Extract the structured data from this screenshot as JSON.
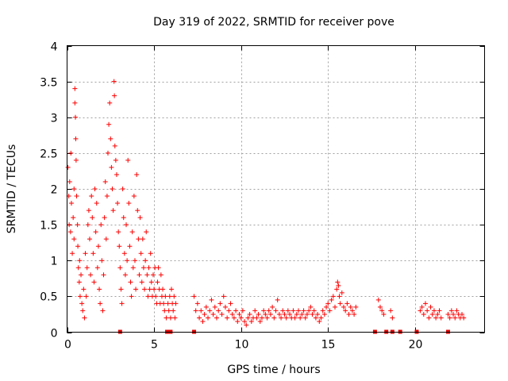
{
  "chart_data": {
    "type": "scatter",
    "title": "Day 319 of 2022, SRMTID for receiver pove",
    "xlabel": "GPS time / hours",
    "ylabel": "SRMTID / TECUs",
    "xlim": [
      0,
      24
    ],
    "ylim": [
      0,
      4
    ],
    "xticks": [
      0,
      5,
      10,
      15,
      20
    ],
    "yticks": [
      0,
      0.5,
      1,
      1.5,
      2,
      2.5,
      3,
      3.5,
      4
    ],
    "x_tick_labels": [
      "0",
      "5",
      "10",
      "15",
      "20"
    ],
    "y_tick_labels": [
      "0",
      "0.5",
      "1",
      "1.5",
      "2",
      "2.5",
      "3",
      "3.5",
      "4"
    ],
    "grid": true,
    "marker": "+",
    "color": "#ff0000",
    "series": [
      {
        "name": "SRMTID",
        "points": [
          [
            0.05,
            2.3
          ],
          [
            0.1,
            1.9
          ],
          [
            0.12,
            1.5
          ],
          [
            0.15,
            2.1
          ],
          [
            0.2,
            1.4
          ],
          [
            0.22,
            2.5
          ],
          [
            0.25,
            1.8
          ],
          [
            0.3,
            1.1
          ],
          [
            0.35,
            1.6
          ],
          [
            0.4,
            2.0
          ],
          [
            0.4,
            1.3
          ],
          [
            0.45,
            3.4
          ],
          [
            0.45,
            3.2
          ],
          [
            0.48,
            3.0
          ],
          [
            0.5,
            2.7
          ],
          [
            0.52,
            2.4
          ],
          [
            0.55,
            1.9
          ],
          [
            0.6,
            1.5
          ],
          [
            0.62,
            1.2
          ],
          [
            0.65,
            0.9
          ],
          [
            0.7,
            0.7
          ],
          [
            0.72,
            1.0
          ],
          [
            0.75,
            0.5
          ],
          [
            0.8,
            0.8
          ],
          [
            0.85,
            0.4
          ],
          [
            0.9,
            0.3
          ],
          [
            0.95,
            0.6
          ],
          [
            1.0,
            0.2
          ],
          [
            1.05,
            1.1
          ],
          [
            1.1,
            0.5
          ],
          [
            1.15,
            0.9
          ],
          [
            1.2,
            1.5
          ],
          [
            1.25,
            1.7
          ],
          [
            1.3,
            1.3
          ],
          [
            1.35,
            0.8
          ],
          [
            1.4,
            1.9
          ],
          [
            1.45,
            1.6
          ],
          [
            1.5,
            1.1
          ],
          [
            1.55,
            0.7
          ],
          [
            1.6,
            2.0
          ],
          [
            1.65,
            1.4
          ],
          [
            1.7,
            1.8
          ],
          [
            1.75,
            0.9
          ],
          [
            1.8,
            1.2
          ],
          [
            1.85,
            0.6
          ],
          [
            1.9,
            0.4
          ],
          [
            1.95,
            1.5
          ],
          [
            2.0,
            1.0
          ],
          [
            2.05,
            0.3
          ],
          [
            2.1,
            0.8
          ],
          [
            2.15,
            1.6
          ],
          [
            2.2,
            2.1
          ],
          [
            2.25,
            1.3
          ],
          [
            2.3,
            1.9
          ],
          [
            2.35,
            2.5
          ],
          [
            2.4,
            2.9
          ],
          [
            2.45,
            3.2
          ],
          [
            2.5,
            2.7
          ],
          [
            2.55,
            2.3
          ],
          [
            2.6,
            2.0
          ],
          [
            2.65,
            1.7
          ],
          [
            2.7,
            3.5
          ],
          [
            2.72,
            3.3
          ],
          [
            2.75,
            2.6
          ],
          [
            2.8,
            2.4
          ],
          [
            2.85,
            2.2
          ],
          [
            2.9,
            1.8
          ],
          [
            2.95,
            1.4
          ],
          [
            3.0,
            1.2
          ],
          [
            3.05,
            0.9
          ],
          [
            3.1,
            0.6
          ],
          [
            3.15,
            0.4
          ],
          [
            3.2,
            2.0
          ],
          [
            3.25,
            1.6
          ],
          [
            3.3,
            1.1
          ],
          [
            3.35,
            0.8
          ],
          [
            3.4,
            1.5
          ],
          [
            3.45,
            1.0
          ],
          [
            3.5,
            2.4
          ],
          [
            3.55,
            1.8
          ],
          [
            3.6,
            1.2
          ],
          [
            3.65,
            0.7
          ],
          [
            3.7,
            0.5
          ],
          [
            3.75,
            1.4
          ],
          [
            3.8,
            0.9
          ],
          [
            3.85,
            1.9
          ],
          [
            3.9,
            1.0
          ],
          [
            3.95,
            0.6
          ],
          [
            4.0,
            2.2
          ],
          [
            4.05,
            1.7
          ],
          [
            4.1,
            1.3
          ],
          [
            4.15,
            0.8
          ],
          [
            4.2,
            1.6
          ],
          [
            4.25,
            1.1
          ],
          [
            4.3,
            0.7
          ],
          [
            4.35,
            1.3
          ],
          [
            4.4,
            0.9
          ],
          [
            4.45,
            0.6
          ],
          [
            4.5,
            1.0
          ],
          [
            4.55,
            1.4
          ],
          [
            4.6,
            0.8
          ],
          [
            4.65,
            0.5
          ],
          [
            4.7,
            0.9
          ],
          [
            4.75,
            0.6
          ],
          [
            4.8,
            1.1
          ],
          [
            4.85,
            0.7
          ],
          [
            4.9,
            0.5
          ],
          [
            4.95,
            0.8
          ],
          [
            5.0,
            0.6
          ],
          [
            5.05,
            0.9
          ],
          [
            5.1,
            0.5
          ],
          [
            5.15,
            0.4
          ],
          [
            5.2,
            0.7
          ],
          [
            5.25,
            0.9
          ],
          [
            5.3,
            0.6
          ],
          [
            5.35,
            0.4
          ],
          [
            5.4,
            0.8
          ],
          [
            5.45,
            0.5
          ],
          [
            5.5,
            0.6
          ],
          [
            5.55,
            0.4
          ],
          [
            5.6,
            0.3
          ],
          [
            5.65,
            0.5
          ],
          [
            5.7,
            0.2
          ],
          [
            5.8,
            0.4
          ],
          [
            5.85,
            0.3
          ],
          [
            5.9,
            0.5
          ],
          [
            5.95,
            0.2
          ],
          [
            6.0,
            0.6
          ],
          [
            6.05,
            0.4
          ],
          [
            6.1,
            0.3
          ],
          [
            6.15,
            0.5
          ],
          [
            6.2,
            0.2
          ],
          [
            6.25,
            0.4
          ],
          [
            7.3,
            0.5
          ],
          [
            7.4,
            0.3
          ],
          [
            7.5,
            0.4
          ],
          [
            7.6,
            0.2
          ],
          [
            7.7,
            0.3
          ],
          [
            7.8,
            0.15
          ],
          [
            7.9,
            0.25
          ],
          [
            8.0,
            0.35
          ],
          [
            8.1,
            0.2
          ],
          [
            8.2,
            0.3
          ],
          [
            8.3,
            0.45
          ],
          [
            8.4,
            0.25
          ],
          [
            8.5,
            0.35
          ],
          [
            8.6,
            0.2
          ],
          [
            8.7,
            0.3
          ],
          [
            8.8,
            0.4
          ],
          [
            8.9,
            0.25
          ],
          [
            9.0,
            0.5
          ],
          [
            9.1,
            0.35
          ],
          [
            9.2,
            0.2
          ],
          [
            9.3,
            0.3
          ],
          [
            9.4,
            0.4
          ],
          [
            9.5,
            0.25
          ],
          [
            9.6,
            0.2
          ],
          [
            9.7,
            0.3
          ],
          [
            9.8,
            0.15
          ],
          [
            9.9,
            0.25
          ],
          [
            10.0,
            0.2
          ],
          [
            10.1,
            0.3
          ],
          [
            10.2,
            0.15
          ],
          [
            10.3,
            0.1
          ],
          [
            10.4,
            0.2
          ],
          [
            10.5,
            0.25
          ],
          [
            10.6,
            0.15
          ],
          [
            10.7,
            0.2
          ],
          [
            10.8,
            0.3
          ],
          [
            10.9,
            0.2
          ],
          [
            11.0,
            0.25
          ],
          [
            11.1,
            0.15
          ],
          [
            11.2,
            0.2
          ],
          [
            11.3,
            0.3
          ],
          [
            11.4,
            0.25
          ],
          [
            11.5,
            0.2
          ],
          [
            11.6,
            0.3
          ],
          [
            11.7,
            0.25
          ],
          [
            11.8,
            0.35
          ],
          [
            11.9,
            0.2
          ],
          [
            12.0,
            0.3
          ],
          [
            12.1,
            0.45
          ],
          [
            12.2,
            0.25
          ],
          [
            12.3,
            0.2
          ],
          [
            12.4,
            0.3
          ],
          [
            12.5,
            0.25
          ],
          [
            12.6,
            0.2
          ],
          [
            12.7,
            0.3
          ],
          [
            12.8,
            0.25
          ],
          [
            12.9,
            0.2
          ],
          [
            13.0,
            0.3
          ],
          [
            13.1,
            0.2
          ],
          [
            13.2,
            0.25
          ],
          [
            13.3,
            0.3
          ],
          [
            13.4,
            0.2
          ],
          [
            13.5,
            0.25
          ],
          [
            13.6,
            0.3
          ],
          [
            13.7,
            0.2
          ],
          [
            13.8,
            0.25
          ],
          [
            13.9,
            0.3
          ],
          [
            14.0,
            0.35
          ],
          [
            14.1,
            0.25
          ],
          [
            14.2,
            0.3
          ],
          [
            14.3,
            0.2
          ],
          [
            14.4,
            0.25
          ],
          [
            14.5,
            0.15
          ],
          [
            14.6,
            0.2
          ],
          [
            14.7,
            0.3
          ],
          [
            14.8,
            0.25
          ],
          [
            14.9,
            0.35
          ],
          [
            15.0,
            0.4
          ],
          [
            15.1,
            0.3
          ],
          [
            15.2,
            0.45
          ],
          [
            15.3,
            0.5
          ],
          [
            15.4,
            0.35
          ],
          [
            15.5,
            0.6
          ],
          [
            15.55,
            0.7
          ],
          [
            15.6,
            0.65
          ],
          [
            15.65,
            0.5
          ],
          [
            15.7,
            0.4
          ],
          [
            15.8,
            0.55
          ],
          [
            15.9,
            0.35
          ],
          [
            16.0,
            0.3
          ],
          [
            16.1,
            0.4
          ],
          [
            16.2,
            0.25
          ],
          [
            16.3,
            0.35
          ],
          [
            16.4,
            0.3
          ],
          [
            16.5,
            0.25
          ],
          [
            16.6,
            0.35
          ],
          [
            17.9,
            0.45
          ],
          [
            18.0,
            0.35
          ],
          [
            18.1,
            0.3
          ],
          [
            18.2,
            0.25
          ],
          [
            18.6,
            0.3
          ],
          [
            18.7,
            0.2
          ],
          [
            20.3,
            0.3
          ],
          [
            20.4,
            0.35
          ],
          [
            20.5,
            0.25
          ],
          [
            20.6,
            0.4
          ],
          [
            20.7,
            0.3
          ],
          [
            20.8,
            0.2
          ],
          [
            20.9,
            0.35
          ],
          [
            21.0,
            0.25
          ],
          [
            21.1,
            0.3
          ],
          [
            21.2,
            0.2
          ],
          [
            21.3,
            0.25
          ],
          [
            21.4,
            0.3
          ],
          [
            21.5,
            0.2
          ],
          [
            21.9,
            0.25
          ],
          [
            22.0,
            0.2
          ],
          [
            22.1,
            0.3
          ],
          [
            22.2,
            0.25
          ],
          [
            22.3,
            0.2
          ],
          [
            22.4,
            0.3
          ],
          [
            22.5,
            0.25
          ],
          [
            22.6,
            0.2
          ],
          [
            22.7,
            0.25
          ],
          [
            22.8,
            0.2
          ]
        ]
      }
    ],
    "gap_markers_x": [
      3.05,
      5.75,
      5.95,
      7.3,
      17.7,
      18.35,
      18.7,
      19.15,
      20.1,
      21.9
    ]
  }
}
